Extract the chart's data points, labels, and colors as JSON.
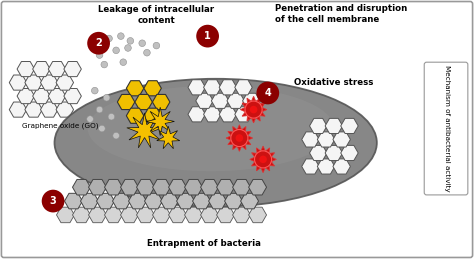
{
  "title": "Mechanism of antibacterial activity",
  "labels": {
    "go": "Graphene oxide (GO)",
    "label1": "Penetration and disruption\nof the cell membrane",
    "label2": "Leakage of intracellular\ncontent",
    "label3": "Entrapment of bacteria",
    "label4": "Oxidative stress"
  },
  "colors": {
    "background": "#ffffff",
    "border": "#888888",
    "cell_body": "#7a7a7a",
    "cell_edge": "#555555",
    "hex_white_fill": "#f5f5f5",
    "hex_white_edge": "#555555",
    "hex_yellow_fill": "#f0c000",
    "hex_yellow_edge": "#333333",
    "hex_gray_fill": "#b0b0b0",
    "hex_gray_edge": "#333333",
    "hex_dark_fill": "#888888",
    "hex_dark_edge": "#333333",
    "number_bg": "#8b0000",
    "number_text": "#ffffff",
    "red_star_fill": "#cc1111",
    "red_star_ray": "#dd3333",
    "dot_color": "#aaaaaa",
    "dot_edge": "#888888",
    "lightning_fill": "#f5c000",
    "lightning_edge": "#222222"
  },
  "fig_width": 4.74,
  "fig_height": 2.59,
  "dpi": 100
}
